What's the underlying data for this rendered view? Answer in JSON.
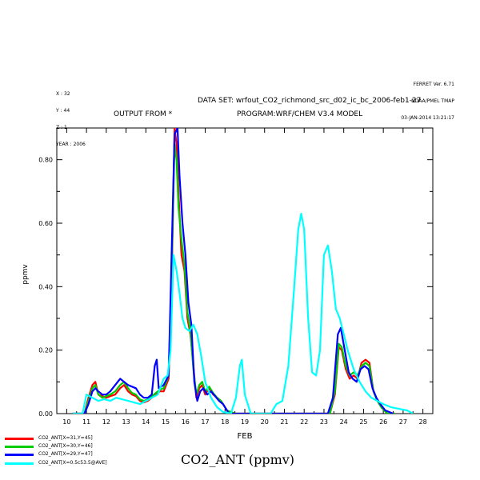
{
  "header": {
    "ferret_lines": [
      "FERRET Ver. 6.71",
      "NOAA/PMEL TMAP",
      "03-JAN-2014 13:21:17"
    ],
    "location_lines": [
      "X : 32",
      "Y : 44",
      "Z : 1",
      "YEAR : 2006"
    ],
    "dataset": "DATA SET: wrfout_CO2_richmond_src_d02_ic_bc_2006-feb1-27",
    "output_from": "OUTPUT FROM *",
    "program": "PROGRAM:WRF/CHEM V3.4 MODEL"
  },
  "footer_title": "CO2_ANT (ppmv)",
  "legend": [
    {
      "label": "CO2_ANT[X=31,Y=45]",
      "color": "#ff0000"
    },
    {
      "label": "CO2_ANT[X=30,Y=46]",
      "color": "#00cc00"
    },
    {
      "label": "CO2_ANT[X=29,Y=47]",
      "color": "#0000ff"
    },
    {
      "label": "CO2_ANT[X=0.5c53.5@AVE]",
      "color": "#00ffff"
    }
  ],
  "chart_data": {
    "type": "line",
    "xlabel": "FEB",
    "ylabel": "ppmv",
    "xlim": [
      9.5,
      28.5
    ],
    "ylim": [
      0,
      0.9
    ],
    "x_ticks": [
      10,
      11,
      12,
      13,
      14,
      15,
      16,
      17,
      18,
      19,
      20,
      21,
      22,
      23,
      24,
      25,
      26,
      27,
      28
    ],
    "y_ticks": [
      0.0,
      0.2,
      0.4,
      0.6,
      0.8
    ],
    "y_tick_labels": [
      "0.00",
      "0.20",
      "0.40",
      "0.60",
      "0.80"
    ],
    "series": [
      {
        "name": "CO2_ANT[X=31,Y=45]",
        "color": "#ff0000",
        "points": [
          [
            10.3,
            0.0
          ],
          [
            10.9,
            0.0
          ],
          [
            11.1,
            0.05
          ],
          [
            11.3,
            0.09
          ],
          [
            11.45,
            0.1
          ],
          [
            11.6,
            0.06
          ],
          [
            11.8,
            0.055
          ],
          [
            12.0,
            0.05
          ],
          [
            12.2,
            0.055
          ],
          [
            12.45,
            0.06
          ],
          [
            12.7,
            0.08
          ],
          [
            12.9,
            0.09
          ],
          [
            13.1,
            0.07
          ],
          [
            13.3,
            0.06
          ],
          [
            13.5,
            0.055
          ],
          [
            13.7,
            0.04
          ],
          [
            13.9,
            0.035
          ],
          [
            14.1,
            0.04
          ],
          [
            14.3,
            0.05
          ],
          [
            14.5,
            0.06
          ],
          [
            14.7,
            0.07
          ],
          [
            14.9,
            0.07
          ],
          [
            15.15,
            0.11
          ],
          [
            15.3,
            0.4
          ],
          [
            15.45,
            0.9
          ],
          [
            15.55,
            0.85
          ],
          [
            15.65,
            0.7
          ],
          [
            15.8,
            0.5
          ],
          [
            15.95,
            0.45
          ],
          [
            16.1,
            0.3
          ],
          [
            16.25,
            0.25
          ],
          [
            16.4,
            0.15
          ],
          [
            16.55,
            0.05
          ],
          [
            16.7,
            0.08
          ],
          [
            16.85,
            0.09
          ],
          [
            17.0,
            0.06
          ],
          [
            17.2,
            0.08
          ],
          [
            17.4,
            0.06
          ],
          [
            17.6,
            0.05
          ],
          [
            17.8,
            0.04
          ],
          [
            18.1,
            0.01
          ],
          [
            18.5,
            0.0
          ],
          [
            23.3,
            0.0
          ],
          [
            23.55,
            0.06
          ],
          [
            23.75,
            0.21
          ],
          [
            23.9,
            0.2
          ],
          [
            24.1,
            0.14
          ],
          [
            24.3,
            0.11
          ],
          [
            24.5,
            0.12
          ],
          [
            24.7,
            0.11
          ],
          [
            24.9,
            0.16
          ],
          [
            25.1,
            0.17
          ],
          [
            25.3,
            0.16
          ],
          [
            25.5,
            0.07
          ],
          [
            25.7,
            0.04
          ],
          [
            25.9,
            0.02
          ],
          [
            26.2,
            0.0
          ],
          [
            26.6,
            0.0
          ]
        ]
      },
      {
        "name": "CO2_ANT[X=30,Y=46]",
        "color": "#00cc00",
        "points": [
          [
            10.3,
            0.0
          ],
          [
            10.9,
            0.0
          ],
          [
            11.1,
            0.04
          ],
          [
            11.3,
            0.08
          ],
          [
            11.45,
            0.09
          ],
          [
            11.6,
            0.06
          ],
          [
            11.8,
            0.05
          ],
          [
            12.0,
            0.055
          ],
          [
            12.2,
            0.06
          ],
          [
            12.45,
            0.07
          ],
          [
            12.7,
            0.09
          ],
          [
            12.9,
            0.1
          ],
          [
            13.1,
            0.08
          ],
          [
            13.3,
            0.065
          ],
          [
            13.5,
            0.06
          ],
          [
            13.7,
            0.045
          ],
          [
            13.9,
            0.04
          ],
          [
            14.1,
            0.045
          ],
          [
            14.3,
            0.055
          ],
          [
            14.5,
            0.065
          ],
          [
            14.7,
            0.075
          ],
          [
            14.9,
            0.08
          ],
          [
            15.15,
            0.12
          ],
          [
            15.3,
            0.45
          ],
          [
            15.45,
            0.85
          ],
          [
            15.55,
            0.8
          ],
          [
            15.65,
            0.65
          ],
          [
            15.8,
            0.55
          ],
          [
            15.95,
            0.47
          ],
          [
            16.1,
            0.32
          ],
          [
            16.25,
            0.26
          ],
          [
            16.4,
            0.14
          ],
          [
            16.55,
            0.06
          ],
          [
            16.7,
            0.09
          ],
          [
            16.85,
            0.1
          ],
          [
            17.0,
            0.07
          ],
          [
            17.2,
            0.085
          ],
          [
            17.4,
            0.065
          ],
          [
            17.6,
            0.05
          ],
          [
            17.8,
            0.04
          ],
          [
            18.1,
            0.01
          ],
          [
            18.5,
            0.0
          ],
          [
            23.3,
            0.0
          ],
          [
            23.55,
            0.07
          ],
          [
            23.75,
            0.22
          ],
          [
            23.9,
            0.21
          ],
          [
            24.1,
            0.15
          ],
          [
            24.3,
            0.12
          ],
          [
            24.5,
            0.13
          ],
          [
            24.7,
            0.12
          ],
          [
            24.9,
            0.15
          ],
          [
            25.1,
            0.16
          ],
          [
            25.3,
            0.15
          ],
          [
            25.5,
            0.07
          ],
          [
            25.7,
            0.04
          ],
          [
            25.9,
            0.02
          ],
          [
            26.2,
            0.0
          ],
          [
            26.6,
            0.0
          ]
        ]
      },
      {
        "name": "CO2_ANT[X=29,Y=47]",
        "color": "#0000ff",
        "points": [
          [
            10.3,
            0.0
          ],
          [
            10.9,
            0.0
          ],
          [
            11.1,
            0.03
          ],
          [
            11.3,
            0.07
          ],
          [
            11.45,
            0.08
          ],
          [
            11.6,
            0.07
          ],
          [
            11.8,
            0.06
          ],
          [
            12.0,
            0.06
          ],
          [
            12.2,
            0.07
          ],
          [
            12.45,
            0.09
          ],
          [
            12.7,
            0.11
          ],
          [
            12.9,
            0.1
          ],
          [
            13.1,
            0.09
          ],
          [
            13.3,
            0.085
          ],
          [
            13.5,
            0.08
          ],
          [
            13.7,
            0.06
          ],
          [
            13.9,
            0.05
          ],
          [
            14.1,
            0.05
          ],
          [
            14.3,
            0.06
          ],
          [
            14.45,
            0.15
          ],
          [
            14.55,
            0.17
          ],
          [
            14.65,
            0.08
          ],
          [
            14.9,
            0.09
          ],
          [
            15.15,
            0.12
          ],
          [
            15.3,
            0.5
          ],
          [
            15.45,
            0.88
          ],
          [
            15.6,
            0.9
          ],
          [
            15.7,
            0.75
          ],
          [
            15.85,
            0.6
          ],
          [
            16.0,
            0.5
          ],
          [
            16.15,
            0.35
          ],
          [
            16.3,
            0.28
          ],
          [
            16.45,
            0.1
          ],
          [
            16.6,
            0.04
          ],
          [
            16.75,
            0.07
          ],
          [
            16.9,
            0.08
          ],
          [
            17.1,
            0.06
          ],
          [
            17.3,
            0.07
          ],
          [
            17.5,
            0.055
          ],
          [
            17.7,
            0.04
          ],
          [
            17.9,
            0.03
          ],
          [
            18.2,
            0.0
          ],
          [
            18.6,
            0.0
          ],
          [
            23.2,
            0.0
          ],
          [
            23.45,
            0.05
          ],
          [
            23.7,
            0.25
          ],
          [
            23.85,
            0.27
          ],
          [
            24.05,
            0.2
          ],
          [
            24.25,
            0.13
          ],
          [
            24.45,
            0.11
          ],
          [
            24.65,
            0.1
          ],
          [
            24.85,
            0.14
          ],
          [
            25.05,
            0.15
          ],
          [
            25.25,
            0.14
          ],
          [
            25.45,
            0.08
          ],
          [
            25.65,
            0.05
          ],
          [
            25.85,
            0.03
          ],
          [
            26.1,
            0.01
          ],
          [
            26.5,
            0.0
          ]
        ]
      },
      {
        "name": "CO2_ANT[X=0.5c53.5@AVE]",
        "color": "#00ffff",
        "points": [
          [
            10.3,
            0.0
          ],
          [
            10.8,
            0.0
          ],
          [
            11.0,
            0.06
          ],
          [
            11.3,
            0.05
          ],
          [
            11.6,
            0.04
          ],
          [
            11.9,
            0.045
          ],
          [
            12.2,
            0.04
          ],
          [
            12.5,
            0.05
          ],
          [
            12.8,
            0.045
          ],
          [
            13.1,
            0.04
          ],
          [
            13.4,
            0.035
          ],
          [
            13.7,
            0.03
          ],
          [
            14.0,
            0.04
          ],
          [
            14.3,
            0.05
          ],
          [
            14.6,
            0.06
          ],
          [
            14.9,
            0.11
          ],
          [
            15.1,
            0.12
          ],
          [
            15.25,
            0.2
          ],
          [
            15.4,
            0.5
          ],
          [
            15.55,
            0.45
          ],
          [
            15.7,
            0.38
          ],
          [
            15.85,
            0.3
          ],
          [
            16.0,
            0.27
          ],
          [
            16.2,
            0.26
          ],
          [
            16.4,
            0.28
          ],
          [
            16.6,
            0.25
          ],
          [
            16.8,
            0.18
          ],
          [
            17.0,
            0.1
          ],
          [
            17.3,
            0.05
          ],
          [
            17.6,
            0.02
          ],
          [
            17.9,
            0.005
          ],
          [
            18.3,
            0.0
          ],
          [
            18.55,
            0.05
          ],
          [
            18.75,
            0.15
          ],
          [
            18.85,
            0.17
          ],
          [
            19.0,
            0.06
          ],
          [
            19.3,
            0.0
          ],
          [
            20.3,
            0.0
          ],
          [
            20.6,
            0.03
          ],
          [
            20.9,
            0.04
          ],
          [
            21.2,
            0.15
          ],
          [
            21.5,
            0.4
          ],
          [
            21.7,
            0.58
          ],
          [
            21.85,
            0.63
          ],
          [
            22.0,
            0.58
          ],
          [
            22.2,
            0.3
          ],
          [
            22.4,
            0.13
          ],
          [
            22.6,
            0.12
          ],
          [
            22.8,
            0.2
          ],
          [
            23.0,
            0.5
          ],
          [
            23.2,
            0.53
          ],
          [
            23.4,
            0.45
          ],
          [
            23.6,
            0.33
          ],
          [
            23.8,
            0.3
          ],
          [
            24.0,
            0.25
          ],
          [
            24.2,
            0.2
          ],
          [
            24.5,
            0.14
          ],
          [
            24.8,
            0.1
          ],
          [
            25.1,
            0.07
          ],
          [
            25.4,
            0.05
          ],
          [
            25.7,
            0.04
          ],
          [
            26.0,
            0.03
          ],
          [
            26.4,
            0.02
          ],
          [
            26.8,
            0.015
          ],
          [
            27.2,
            0.01
          ],
          [
            27.5,
            0.0
          ]
        ]
      }
    ]
  }
}
